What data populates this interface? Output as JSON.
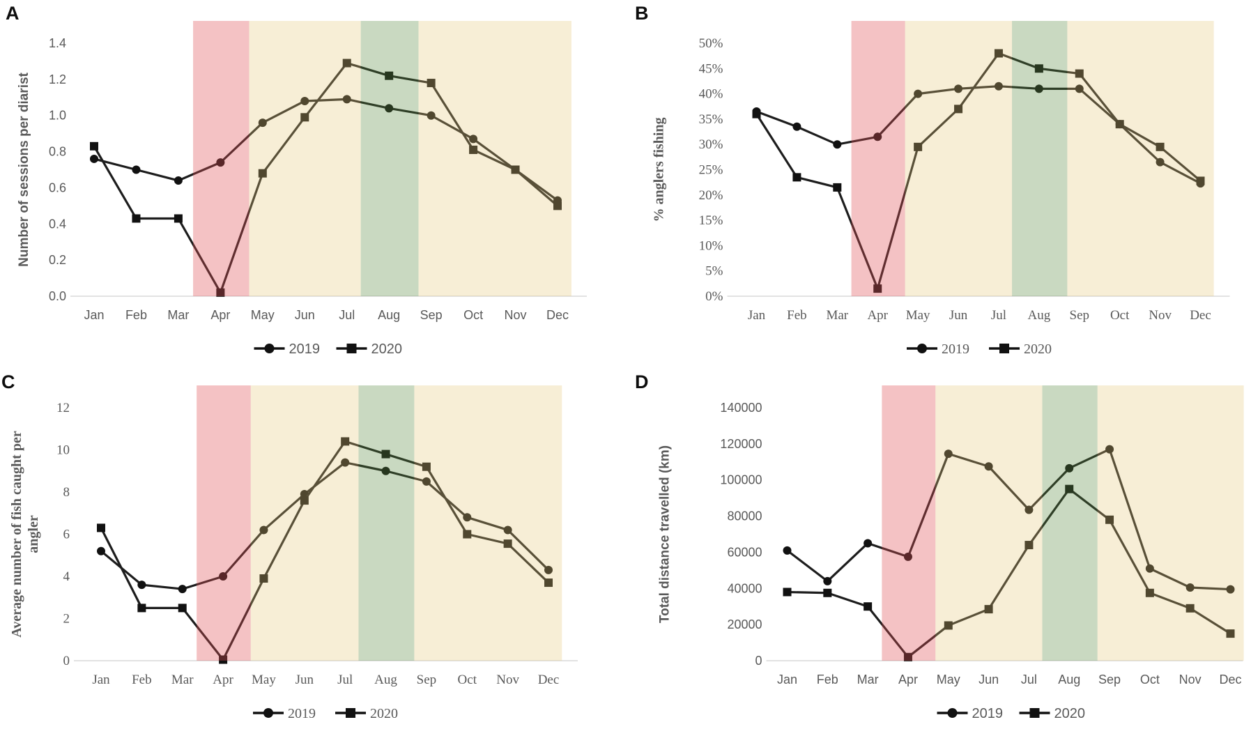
{
  "figure_title": "",
  "colors": {
    "series_line": "#1d1d1d",
    "marker_fill": "#111111",
    "label_text": "#595959",
    "panel_letter": "#0d0d0d",
    "axis_line": "#d9d9d9",
    "background": "#ffffff",
    "red_band_overlay": "rgba(224,79,85,0.35)",
    "yellow_band_overlay": "rgba(230,200,120,0.30)",
    "green_band_overlay": "rgba(88,138,63,0.32)"
  },
  "lockdown_bands": [
    {
      "name": "red-lockdown-band",
      "from_index": 2.35,
      "to_index": 3.68,
      "color": "rgba(224,79,85,0.35)"
    },
    {
      "name": "yellow-band-spring",
      "from_index": 3.68,
      "to_index": 6.33,
      "color": "rgba(230,200,120,0.30)"
    },
    {
      "name": "green-band-august",
      "from_index": 6.33,
      "to_index": 7.7,
      "color": "rgba(88,138,63,0.32)"
    },
    {
      "name": "yellow-band-autumn",
      "from_index": 7.7,
      "to_index": 11.33,
      "color": "rgba(230,200,120,0.30)"
    }
  ],
  "chart_data": [
    {
      "panel_letter": "A",
      "type": "line",
      "title": "",
      "xlabel": "",
      "ylabel": "Number of sessions per diarist",
      "ylabel_lines": [
        "Number of sessions per diarist"
      ],
      "ylim": [
        0,
        1.4
      ],
      "ytick_labels": [
        "0.0",
        "0.2",
        "0.4",
        "0.6",
        "0.8",
        "1.0",
        "1.2",
        "1.4"
      ],
      "grid": false,
      "legend_position": "bottom",
      "categories": [
        "Jan",
        "Feb",
        "Mar",
        "Apr",
        "May",
        "Jun",
        "Jul",
        "Aug",
        "Sep",
        "Oct",
        "Nov",
        "Dec"
      ],
      "series": [
        {
          "name": "2019",
          "marker": "circle",
          "values": [
            0.76,
            0.7,
            0.64,
            0.74,
            0.96,
            1.08,
            1.09,
            1.04,
            1.0,
            0.87,
            0.7,
            0.53
          ]
        },
        {
          "name": "2020",
          "marker": "square",
          "values": [
            0.83,
            0.43,
            0.43,
            0.02,
            0.68,
            0.99,
            1.29,
            1.22,
            1.18,
            0.81,
            0.7,
            0.5
          ]
        }
      ]
    },
    {
      "panel_letter": "B",
      "type": "line",
      "title": "",
      "xlabel": "",
      "ylabel": "% anglers fishing",
      "ylabel_lines": [
        "% anglers fishing"
      ],
      "ylim": [
        0,
        50
      ],
      "ytick_labels": [
        "0%",
        "5%",
        "10%",
        "15%",
        "20%",
        "25%",
        "30%",
        "35%",
        "40%",
        "45%",
        "50%"
      ],
      "grid": false,
      "legend_position": "bottom",
      "categories": [
        "Jan",
        "Feb",
        "Mar",
        "Apr",
        "May",
        "Jun",
        "Jul",
        "Aug",
        "Sep",
        "Oct",
        "Nov",
        "Dec"
      ],
      "series": [
        {
          "name": "2019",
          "marker": "circle",
          "values": [
            36.5,
            33.5,
            30,
            31.5,
            40,
            41,
            41.5,
            41,
            41,
            34,
            26.5,
            22.3
          ]
        },
        {
          "name": "2020",
          "marker": "square",
          "values": [
            36,
            23.5,
            21.5,
            1.5,
            29.5,
            37,
            48,
            45,
            44,
            34,
            29.5,
            22.8
          ]
        }
      ]
    },
    {
      "panel_letter": "C",
      "type": "line",
      "title": "",
      "xlabel": "",
      "ylabel": "Average number of fish caught per angler",
      "ylabel_lines": [
        "Average number of fish caught per",
        "angler"
      ],
      "ylim": [
        0,
        12
      ],
      "ytick_labels": [
        "0",
        "2",
        "4",
        "6",
        "8",
        "10",
        "12"
      ],
      "grid": false,
      "legend_position": "bottom",
      "categories": [
        "Jan",
        "Feb",
        "Mar",
        "Apr",
        "May",
        "Jun",
        "Jul",
        "Aug",
        "Sep",
        "Oct",
        "Nov",
        "Dec"
      ],
      "series": [
        {
          "name": "2019",
          "marker": "circle",
          "values": [
            5.2,
            3.6,
            3.4,
            4.0,
            6.2,
            7.9,
            9.4,
            9.0,
            8.5,
            6.8,
            6.2,
            4.3
          ]
        },
        {
          "name": "2020",
          "marker": "square",
          "values": [
            6.3,
            2.5,
            2.5,
            0.05,
            3.9,
            7.6,
            10.4,
            9.8,
            9.2,
            6.0,
            5.55,
            3.7
          ]
        }
      ]
    },
    {
      "panel_letter": "D",
      "type": "line",
      "title": "",
      "xlabel": "",
      "ylabel": "Total distance travelled (km)",
      "ylabel_lines": [
        "Total distance travelled (km)"
      ],
      "ylim": [
        0,
        140000
      ],
      "ytick_labels": [
        "0",
        "20000",
        "40000",
        "60000",
        "80000",
        "100000",
        "120000",
        "140000"
      ],
      "grid": false,
      "legend_position": "bottom",
      "categories": [
        "Jan",
        "Feb",
        "Mar",
        "Apr",
        "May",
        "Jun",
        "Jul",
        "Aug",
        "Sep",
        "Oct",
        "Nov",
        "Dec"
      ],
      "series": [
        {
          "name": "2019",
          "marker": "circle",
          "values": [
            61000,
            44000,
            65000,
            57500,
            114500,
            107500,
            83500,
            106500,
            117000,
            51000,
            40500,
            39500
          ]
        },
        {
          "name": "2020",
          "marker": "square",
          "values": [
            38000,
            37500,
            30000,
            2000,
            19500,
            28500,
            64000,
            95000,
            78000,
            37500,
            29000,
            15000
          ]
        }
      ]
    }
  ]
}
